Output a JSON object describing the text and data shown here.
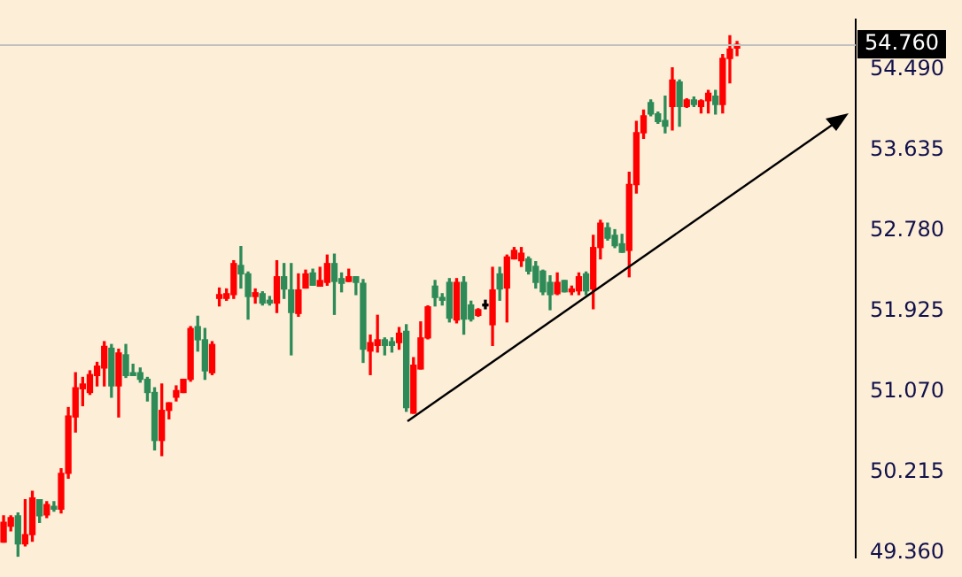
{
  "chart_data": {
    "type": "candlestick",
    "categories": [
      null,
      null,
      null,
      null,
      null,
      null,
      null,
      null,
      null,
      null,
      null,
      null,
      null,
      null,
      null,
      null,
      null,
      null,
      null,
      null,
      null,
      null,
      null,
      null,
      null,
      null,
      null,
      null,
      null,
      null,
      null,
      null,
      null,
      null,
      null,
      null,
      null,
      null,
      null,
      null,
      null,
      null,
      null,
      null,
      null,
      null,
      null,
      null,
      null,
      null,
      null,
      null,
      null,
      null,
      null,
      null,
      null,
      null,
      null,
      null,
      null,
      null,
      null,
      null,
      null,
      null,
      null,
      null,
      null,
      null,
      null,
      null,
      null,
      null,
      null,
      null,
      null,
      null,
      null,
      null,
      null,
      null,
      null,
      null,
      null,
      null,
      null,
      null,
      null,
      null,
      null,
      null,
      null,
      null,
      null,
      null,
      null,
      null,
      null,
      null,
      null,
      null,
      null,
      null,
      null,
      null,
      null,
      null,
      null,
      null,
      null,
      null,
      null,
      null,
      null,
      null,
      null,
      null,
      null
    ],
    "ohlc": [
      [
        49.47,
        49.75,
        49.47,
        49.68
      ],
      [
        49.64,
        49.75,
        49.59,
        49.73
      ],
      [
        49.75,
        49.78,
        49.32,
        49.45
      ],
      [
        49.45,
        49.92,
        49.43,
        49.55
      ],
      [
        49.55,
        50.01,
        49.48,
        49.94
      ],
      [
        49.92,
        49.92,
        49.68,
        49.75
      ],
      [
        49.76,
        49.9,
        49.73,
        49.87
      ],
      [
        49.85,
        49.9,
        49.8,
        49.82
      ],
      [
        49.82,
        50.25,
        49.78,
        50.2
      ],
      [
        50.2,
        50.9,
        50.15,
        50.81
      ],
      [
        50.8,
        51.27,
        50.64,
        51.11
      ],
      [
        51.1,
        51.22,
        50.92,
        51.15
      ],
      [
        51.06,
        51.29,
        51.04,
        51.25
      ],
      [
        51.24,
        51.38,
        51.13,
        51.34
      ],
      [
        51.32,
        51.6,
        51.13,
        51.55
      ],
      [
        51.53,
        51.57,
        51.01,
        51.13
      ],
      [
        51.13,
        51.52,
        50.8,
        51.48
      ],
      [
        51.46,
        51.57,
        51.22,
        51.24
      ],
      [
        51.27,
        51.36,
        51.24,
        51.24
      ],
      [
        51.27,
        51.32,
        51.17,
        51.2
      ],
      [
        51.2,
        51.22,
        50.97,
        51.06
      ],
      [
        51.06,
        51.11,
        50.45,
        50.55
      ],
      [
        50.55,
        51.15,
        50.39,
        50.87
      ],
      [
        50.87,
        50.95,
        50.78,
        50.95
      ],
      [
        51.01,
        51.13,
        50.97,
        51.08
      ],
      [
        51.06,
        51.2,
        51.06,
        51.2
      ],
      [
        51.2,
        51.76,
        51.18,
        51.74
      ],
      [
        51.76,
        51.87,
        51.5,
        51.62
      ],
      [
        51.62,
        51.74,
        51.2,
        51.29
      ],
      [
        51.27,
        51.6,
        51.25,
        51.57
      ],
      [
        52.06,
        52.17,
        51.98,
        52.1
      ],
      [
        52.06,
        52.16,
        52.04,
        52.11
      ],
      [
        52.1,
        52.46,
        52.06,
        52.43
      ],
      [
        52.41,
        52.61,
        52.17,
        52.32
      ],
      [
        52.32,
        52.34,
        51.84,
        52.08
      ],
      [
        52.08,
        52.16,
        52.01,
        52.12
      ],
      [
        52.11,
        52.13,
        51.99,
        52.01
      ],
      [
        52.04,
        52.08,
        51.99,
        52.01
      ],
      [
        52.01,
        52.46,
        51.91,
        52.29
      ],
      [
        52.29,
        52.43,
        52.06,
        52.16
      ],
      [
        52.15,
        52.43,
        51.46,
        51.91
      ],
      [
        51.9,
        52.32,
        51.87,
        52.15
      ],
      [
        52.17,
        52.36,
        52.17,
        52.32
      ],
      [
        52.33,
        52.37,
        52.2,
        52.2
      ],
      [
        52.19,
        52.39,
        52.19,
        52.25
      ],
      [
        52.23,
        52.52,
        52.2,
        52.43
      ],
      [
        52.43,
        52.53,
        51.89,
        52.24
      ],
      [
        52.27,
        52.33,
        52.13,
        52.22
      ],
      [
        52.24,
        52.37,
        52.24,
        52.29
      ],
      [
        52.29,
        52.29,
        52.1,
        52.23
      ],
      [
        52.22,
        52.26,
        51.38,
        51.52
      ],
      [
        51.5,
        51.67,
        51.25,
        51.59
      ],
      [
        51.56,
        51.88,
        51.49,
        51.62
      ],
      [
        51.62,
        51.64,
        51.46,
        51.56
      ],
      [
        51.6,
        51.64,
        51.49,
        51.56
      ],
      [
        51.59,
        51.75,
        51.52,
        51.69
      ],
      [
        51.71,
        51.78,
        50.86,
        50.9
      ],
      [
        50.84,
        51.43,
        50.84,
        51.35
      ],
      [
        51.31,
        51.81,
        51.31,
        51.64
      ],
      [
        51.64,
        51.98,
        51.63,
        51.97
      ],
      [
        52.19,
        52.25,
        51.98,
        52.07
      ],
      [
        52.07,
        52.11,
        51.99,
        52.04
      ],
      [
        52.23,
        52.27,
        51.81,
        51.85
      ],
      [
        51.83,
        52.27,
        51.8,
        52.23
      ],
      [
        52.23,
        52.29,
        51.68,
        51.84
      ],
      [
        51.99,
        52.03,
        51.82,
        51.84
      ],
      [
        51.88,
        51.95,
        51.87,
        51.94
      ],
      [
        51.98,
        52.04,
        51.95,
        51.98
      ],
      [
        51.78,
        52.39,
        51.56,
        52.15
      ],
      [
        52.32,
        52.39,
        52.04,
        52.16
      ],
      [
        52.17,
        52.52,
        51.81,
        52.5
      ],
      [
        52.48,
        52.6,
        52.48,
        52.57
      ],
      [
        52.46,
        52.6,
        52.4,
        52.54
      ],
      [
        52.48,
        52.5,
        52.32,
        52.35
      ],
      [
        52.4,
        52.45,
        52.17,
        52.23
      ],
      [
        52.35,
        52.36,
        52.1,
        52.13
      ],
      [
        52.23,
        52.3,
        51.94,
        52.1
      ],
      [
        52.11,
        52.33,
        52.1,
        52.23
      ],
      [
        52.25,
        52.25,
        52.13,
        52.13
      ],
      [
        52.13,
        52.19,
        52.1,
        52.16
      ],
      [
        52.14,
        52.33,
        52.1,
        52.29
      ],
      [
        52.32,
        52.34,
        52.1,
        52.14
      ],
      [
        52.16,
        52.73,
        51.95,
        52.6
      ],
      [
        52.6,
        52.89,
        52.48,
        52.86
      ],
      [
        52.81,
        52.86,
        52.68,
        52.7
      ],
      [
        52.73,
        52.79,
        52.6,
        52.62
      ],
      [
        52.64,
        52.74,
        52.55,
        52.55
      ],
      [
        52.57,
        53.4,
        52.29,
        53.27
      ],
      [
        53.27,
        53.94,
        53.18,
        53.82
      ],
      [
        53.82,
        54.06,
        53.76,
        54.0
      ],
      [
        54.14,
        54.17,
        54.0,
        54.02
      ],
      [
        54.02,
        54.04,
        53.92,
        53.94
      ],
      [
        53.95,
        54.21,
        53.82,
        53.89
      ],
      [
        54.1,
        54.51,
        53.85,
        54.38
      ],
      [
        54.36,
        54.38,
        53.89,
        54.1
      ],
      [
        54.1,
        54.18,
        54.09,
        54.17
      ],
      [
        54.17,
        54.2,
        54.1,
        54.12
      ],
      [
        54.1,
        54.17,
        54.03,
        54.16
      ],
      [
        54.16,
        54.27,
        54.03,
        54.24
      ],
      [
        54.21,
        54.27,
        54.02,
        54.12
      ],
      [
        54.12,
        54.65,
        54.03,
        54.61
      ],
      [
        54.61,
        54.85,
        54.35,
        54.71
      ],
      [
        54.72,
        54.79,
        54.64,
        54.76
      ],
      null,
      null,
      null,
      null,
      null,
      null,
      null,
      null,
      null,
      null,
      null,
      null,
      null,
      null,
      null,
      null
    ],
    "colors": [
      "#ff0000",
      "#ff0000",
      "#2e8b57",
      "#ff0000",
      "#ff0000",
      "#2e8b57",
      "#ff0000",
      "#2e8b57",
      "#ff0000",
      "#ff0000",
      "#ff0000",
      "#ff0000",
      "#ff0000",
      "#ff0000",
      "#ff0000",
      "#2e8b57",
      "#ff0000",
      "#2e8b57",
      "#2e8b57",
      "#2e8b57",
      "#2e8b57",
      "#2e8b57",
      "#ff0000",
      "#ff0000",
      "#ff0000",
      "#ff0000",
      "#ff0000",
      "#2e8b57",
      "#2e8b57",
      "#ff0000",
      "#ff0000",
      "#ff0000",
      "#ff0000",
      "#2e8b57",
      "#2e8b57",
      "#ff0000",
      "#2e8b57",
      "#2e8b57",
      "#ff0000",
      "#2e8b57",
      "#2e8b57",
      "#ff0000",
      "#ff0000",
      "#2e8b57",
      "#ff0000",
      "#ff0000",
      "#2e8b57",
      "#2e8b57",
      "#ff0000",
      "#2e8b57",
      "#2e8b57",
      "#ff0000",
      "#ff0000",
      "#2e8b57",
      "#2e8b57",
      "#ff0000",
      "#2e8b57",
      "#ff0000",
      "#ff0000",
      "#ff0000",
      "#2e8b57",
      "#2e8b57",
      "#2e8b57",
      "#ff0000",
      "#2e8b57",
      "#2e8b57",
      "#ff0000",
      "#000000",
      "#ff0000",
      "#2e8b57",
      "#ff0000",
      "#ff0000",
      "#ff0000",
      "#2e8b57",
      "#2e8b57",
      "#2e8b57",
      "#2e8b57",
      "#ff0000",
      "#2e8b57",
      "#ff0000",
      "#ff0000",
      "#2e8b57",
      "#ff0000",
      "#ff0000",
      "#2e8b57",
      "#2e8b57",
      "#2e8b57",
      "#ff0000",
      "#ff0000",
      "#ff0000",
      "#2e8b57",
      "#2e8b57",
      "#2e8b57",
      "#ff0000",
      "#2e8b57",
      "#ff0000",
      "#2e8b57",
      "#ff0000",
      "#ff0000",
      "#2e8b57",
      "#ff0000",
      "#ff0000",
      "#ff0000",
      null,
      null,
      null,
      null,
      null,
      null,
      null,
      null,
      null,
      null,
      null,
      null,
      null,
      null,
      null,
      null
    ],
    "ylim": [
      49.31,
      55.02
    ],
    "yticks": [
      {
        "value": 49.36,
        "label": "49.360"
      },
      {
        "value": 50.215,
        "label": "50.215"
      },
      {
        "value": 51.07,
        "label": "51.070"
      },
      {
        "value": 51.925,
        "label": "51.925"
      },
      {
        "value": 52.78,
        "label": "52.780"
      },
      {
        "value": 53.635,
        "label": "53.635"
      },
      {
        "value": 54.49,
        "label": "54.490"
      }
    ],
    "ref_lines": [
      {
        "axis": "y",
        "value": 54.76,
        "label": "54.760",
        "color": "#c0c0c0"
      }
    ]
  }
}
